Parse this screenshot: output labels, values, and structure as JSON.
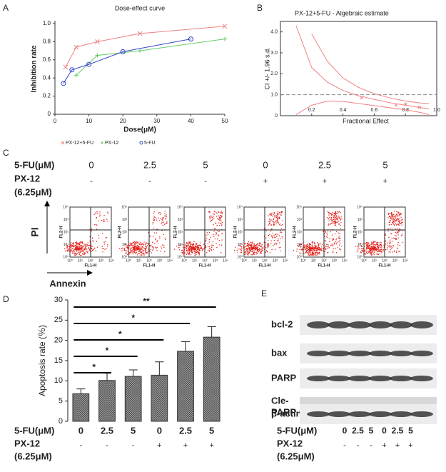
{
  "panel_labels": [
    "A",
    "B",
    "C",
    "D",
    "E"
  ],
  "chart_data": [
    {
      "type": "scatter",
      "title": "Dose-effect curve",
      "x_label": "Dose(μM)",
      "y_label": "Inhibition rate",
      "xlim": [
        0,
        50
      ],
      "xticks": [
        0,
        10,
        20,
        30,
        40,
        50
      ],
      "ylim": [
        0,
        1
      ],
      "yticks": [
        0,
        0.2,
        0.4,
        0.6,
        0.8,
        {
          "value": 1,
          "label": "1.0"
        }
      ],
      "series": [
        {
          "name": "PX-12+5-FU",
          "color": "#f08080",
          "marker": "x",
          "x": [
            3.125,
            6.25,
            12.5,
            25,
            50
          ],
          "values": [
            0.52,
            0.74,
            0.8,
            0.89,
            0.97
          ]
        },
        {
          "name": "PX-12",
          "color": "#66cc66",
          "marker": "+",
          "x": [
            6.25,
            12.5,
            25,
            50
          ],
          "values": [
            0.43,
            0.65,
            0.7,
            0.83
          ]
        },
        {
          "name": "5-FU",
          "color": "#3344cc",
          "marker": "o",
          "x": [
            2.5,
            5,
            10,
            20,
            40
          ],
          "values": [
            0.34,
            0.49,
            0.55,
            0.69,
            0.83
          ]
        }
      ]
    },
    {
      "type": "line",
      "title": "PX-12+5-FU - Algebraic estimate",
      "x_label": "Fractional Effect",
      "y_label": "CI +/- 1.96 s.d.",
      "xlim": [
        0,
        1
      ],
      "xticks": [
        0.2,
        0.4,
        0.6,
        0.8,
        {
          "value": 1,
          "label": "1.0"
        }
      ],
      "ylim": [
        0,
        4.5
      ],
      "yticks": [
        0,
        {
          "value": 1,
          "label": "1.0"
        },
        {
          "value": 2,
          "label": "2.0"
        },
        {
          "value": 3,
          "label": "3.0"
        },
        {
          "value": 4,
          "label": "4.0"
        }
      ],
      "reference_line": 1,
      "color": "#f08080",
      "x": [
        0.05,
        0.1,
        0.2,
        0.3,
        0.4,
        0.5,
        0.6,
        0.7,
        0.8,
        0.9,
        0.95
      ],
      "series": [
        {
          "values": [
            null,
            4.3,
            2.3,
            1.6,
            1.2,
            0.95,
            0.78,
            0.62,
            0.5,
            0.38,
            0.32
          ]
        },
        {
          "values": [
            null,
            null,
            3.9,
            2.6,
            1.8,
            1.35,
            1.05,
            0.85,
            0.7,
            0.6,
            0.58
          ]
        },
        {
          "values": [
            null,
            0.05,
            0.5,
            0.7,
            0.68,
            0.58,
            0.48,
            0.38,
            0.28,
            0.15,
            0.05
          ]
        }
      ],
      "points": {
        "x": [
          0.52,
          0.74,
          0.8,
          0.89
        ],
        "values": [
          0.85,
          0.5,
          0.55,
          0.4
        ]
      }
    },
    {
      "type": "bar",
      "y_label": "Apoptosis rate (％)",
      "ylim": [
        0,
        30
      ],
      "yticks": [
        0,
        5,
        10,
        15,
        20,
        25,
        30
      ],
      "color": "#a0a0a0",
      "values": [
        6.8,
        10.1,
        11.1,
        11.4,
        17.3,
        20.8
      ],
      "errors": [
        1.2,
        1.8,
        1.6,
        3.3,
        2.4,
        2.6
      ],
      "row_labels": [
        "5-FU(μM)",
        "PX-12",
        "(6.25μM)"
      ],
      "categories": [
        "0",
        "2.5",
        "5",
        "0",
        "2.5",
        "5"
      ],
      "categories2": [
        "-",
        "-",
        "-",
        "+",
        "+",
        "+"
      ],
      "significance": [
        {
          "from": 0,
          "to": 1,
          "label": "*"
        },
        {
          "from": 0,
          "to": 2,
          "label": "*"
        },
        {
          "from": 0,
          "to": 3,
          "label": "*"
        },
        {
          "from": 0,
          "to": 4,
          "label": "*"
        },
        {
          "from": 0,
          "to": 5,
          "label": "**"
        }
      ]
    }
  ],
  "panel_c": {
    "row_labels": [
      "5-FU(μM)",
      "PX-12",
      "(6.25μM)"
    ],
    "doses": [
      "0",
      "2.5",
      "5",
      "0",
      "2.5",
      "5"
    ],
    "px12": [
      "-",
      "-",
      "-",
      "+",
      "+",
      "+"
    ],
    "y_axis": "PI",
    "x_axis": "Annexin",
    "plot_x_label": "FL1-H",
    "plot_y_label": "FL2-H",
    "plot_ticks": [
      "10⁰",
      "10¹",
      "10²",
      "10³",
      "10⁴"
    ]
  },
  "panel_e": {
    "blots": [
      [
        "bcl-2"
      ],
      [
        "bax"
      ],
      [
        "PARP"
      ],
      [
        "Cle-",
        "PARP"
      ],
      [
        "β-actin"
      ]
    ],
    "row_labels": [
      "5-FU(μM)",
      "PX-12",
      "(6.25μM)"
    ],
    "doses": [
      "0",
      "2.5",
      "5",
      "0",
      "2.5",
      "5"
    ],
    "px12": [
      "-",
      "-",
      "-",
      "+",
      "+",
      "+"
    ]
  }
}
